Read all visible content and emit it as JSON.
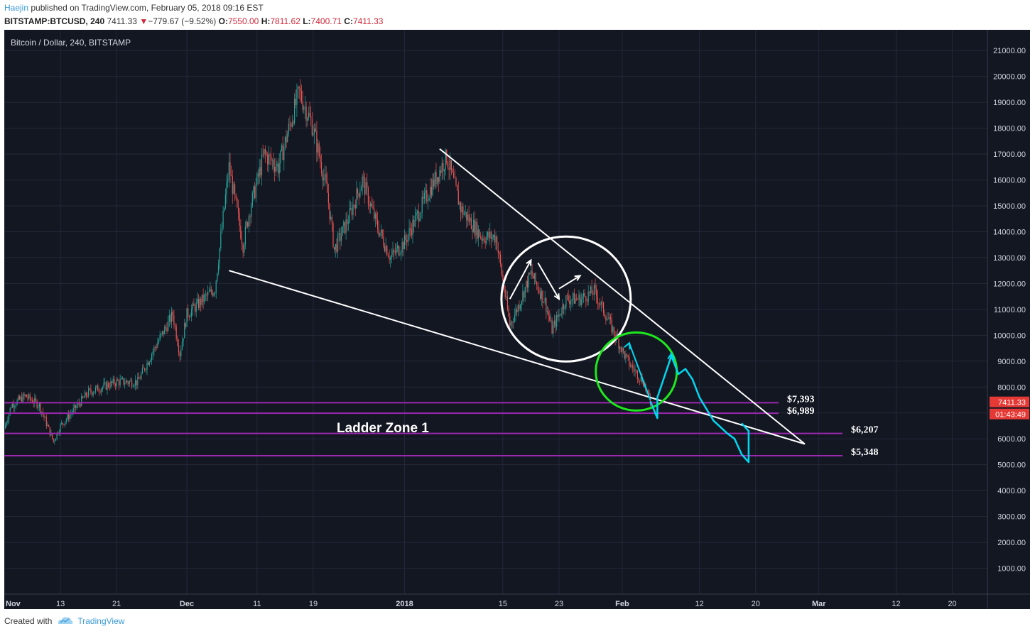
{
  "header": {
    "author": "Haejin",
    "published": "published on TradingView.com, February 05, 2018 09:16 EST",
    "symbol": "BITSTAMP:BTCUSD, 240",
    "last": "7411.33",
    "change_arrow": "▼",
    "change": "−779.67 (−9.52%)",
    "o_label": "O:",
    "o_value": "7550.00",
    "h_label": "H:",
    "h_value": "7811.62",
    "l_label": "L:",
    "l_value": "7400.71",
    "c_label": "C:",
    "c_value": "7411.33"
  },
  "footer": {
    "created_with": "Created with",
    "brand": "TradingView"
  },
  "colors": {
    "background": "#131722",
    "grid": "#242838",
    "up": "#26a69a",
    "down": "#ef5350",
    "trendline": "#ffffff",
    "level": "#9c27b0",
    "projection": "#00d8f0",
    "circle_green": "#1ee81e",
    "price_tag": "#e53935",
    "header_down": "#d0283a"
  },
  "chart_data": {
    "type": "candlestick",
    "title": "Bitcoin / Dollar, 240, BITSTAMP",
    "x_ticks": [
      "Nov",
      "13",
      "21",
      "Dec",
      "11",
      "19",
      "2018",
      "15",
      "23",
      "Feb",
      "12",
      "20",
      "Mar",
      "12",
      "20"
    ],
    "x_tick_dates": [
      "2017-11-05",
      "2017-11-13",
      "2017-11-21",
      "2017-12-01",
      "2017-12-11",
      "2017-12-19",
      "2018-01-01",
      "2018-01-15",
      "2018-01-23",
      "2018-02-01",
      "2018-02-12",
      "2018-02-20",
      "2018-03-01",
      "2018-03-12",
      "2018-03-20"
    ],
    "x_range": [
      "2017-11-05",
      "2018-03-25"
    ],
    "y_ticks": [
      "1000.00",
      "2000.00",
      "3000.00",
      "4000.00",
      "5000.00",
      "6000.00",
      "7000.00",
      "8000.00",
      "9000.00",
      "10000.00",
      "11000.00",
      "12000.00",
      "13000.00",
      "14000.00",
      "15000.00",
      "16000.00",
      "17000.00",
      "18000.00",
      "19000.00",
      "20000.00",
      "21000.00"
    ],
    "y_range": [
      0,
      21800
    ],
    "price_path": [
      [
        "2017-11-05",
        6400
      ],
      [
        "2017-11-06",
        7300
      ],
      [
        "2017-11-08",
        7650
      ],
      [
        "2017-11-10",
        7300
      ],
      [
        "2017-11-12",
        5900
      ],
      [
        "2017-11-13",
        6500
      ],
      [
        "2017-11-17",
        7800
      ],
      [
        "2017-11-21",
        8200
      ],
      [
        "2017-11-24",
        8200
      ],
      [
        "2017-11-26",
        9300
      ],
      [
        "2017-11-29",
        10800
      ],
      [
        "2017-11-30",
        9300
      ],
      [
        "2017-12-01",
        10800
      ],
      [
        "2017-12-05",
        11800
      ],
      [
        "2017-12-07",
        16500
      ],
      [
        "2017-12-09",
        13500
      ],
      [
        "2017-12-10",
        14900
      ],
      [
        "2017-12-12",
        17000
      ],
      [
        "2017-12-14",
        16500
      ],
      [
        "2017-12-17",
        19400
      ],
      [
        "2017-12-19",
        18000
      ],
      [
        "2017-12-21",
        15500
      ],
      [
        "2017-12-22",
        13300
      ],
      [
        "2017-12-24",
        14500
      ],
      [
        "2017-12-26",
        16000
      ],
      [
        "2017-12-28",
        14300
      ],
      [
        "2017-12-30",
        13000
      ],
      [
        "2018-01-01",
        13600
      ],
      [
        "2018-01-04",
        15300
      ],
      [
        "2018-01-07",
        16900
      ],
      [
        "2018-01-09",
        14900
      ],
      [
        "2018-01-12",
        13800
      ],
      [
        "2018-01-14",
        13800
      ],
      [
        "2018-01-16",
        10400
      ],
      [
        "2018-01-17",
        11000
      ],
      [
        "2018-01-19",
        12400
      ],
      [
        "2018-01-21",
        11300
      ],
      [
        "2018-01-22",
        10200
      ],
      [
        "2018-01-24",
        11400
      ],
      [
        "2018-01-26",
        11400
      ],
      [
        "2018-01-28",
        11700
      ],
      [
        "2018-01-30",
        10600
      ],
      [
        "2018-02-01",
        9400
      ],
      [
        "2018-02-02",
        8900
      ],
      [
        "2018-02-04",
        8200
      ],
      [
        "2018-02-05",
        7400
      ]
    ],
    "support_levels": [
      {
        "label": "$7,393",
        "value": 7393
      },
      {
        "label": "$6,989",
        "value": 6989
      },
      {
        "label": "$6,207",
        "value": 6207
      },
      {
        "label": "$5,348",
        "value": 5348
      }
    ],
    "trendlines": [
      {
        "name": "upper",
        "from": [
          "2018-01-06",
          17200
        ],
        "to": [
          "2018-02-27",
          5800
        ]
      },
      {
        "name": "lower",
        "from": [
          "2017-12-07",
          12500
        ],
        "to": [
          "2018-02-27",
          5800
        ]
      }
    ],
    "annotations": [
      {
        "type": "text",
        "text": "Ladder Zone 1"
      },
      {
        "type": "circle",
        "color": "white",
        "center": [
          "2018-01-24",
          11400
        ]
      },
      {
        "type": "circle",
        "color": "green",
        "center": [
          "2018-02-03",
          8600
        ]
      }
    ],
    "projection_path": [
      [
        "2018-02-05",
        7450
      ],
      [
        "2018-02-06",
        6800
      ],
      [
        "2018-02-06",
        7600
      ],
      [
        "2018-02-08",
        9200
      ],
      [
        "2018-02-09",
        8500
      ],
      [
        "2018-02-10",
        8700
      ],
      [
        "2018-02-11",
        8300
      ],
      [
        "2018-02-12",
        7600
      ],
      [
        "2018-02-14",
        6700
      ],
      [
        "2018-02-16",
        6200
      ],
      [
        "2018-02-17",
        6000
      ],
      [
        "2018-02-18",
        5400
      ],
      [
        "2018-02-19",
        5100
      ],
      [
        "2018-02-19",
        6300
      ],
      [
        "2018-02-18",
        6600
      ]
    ],
    "price_tag": "7411.33",
    "countdown_tag": "01:43:49"
  }
}
